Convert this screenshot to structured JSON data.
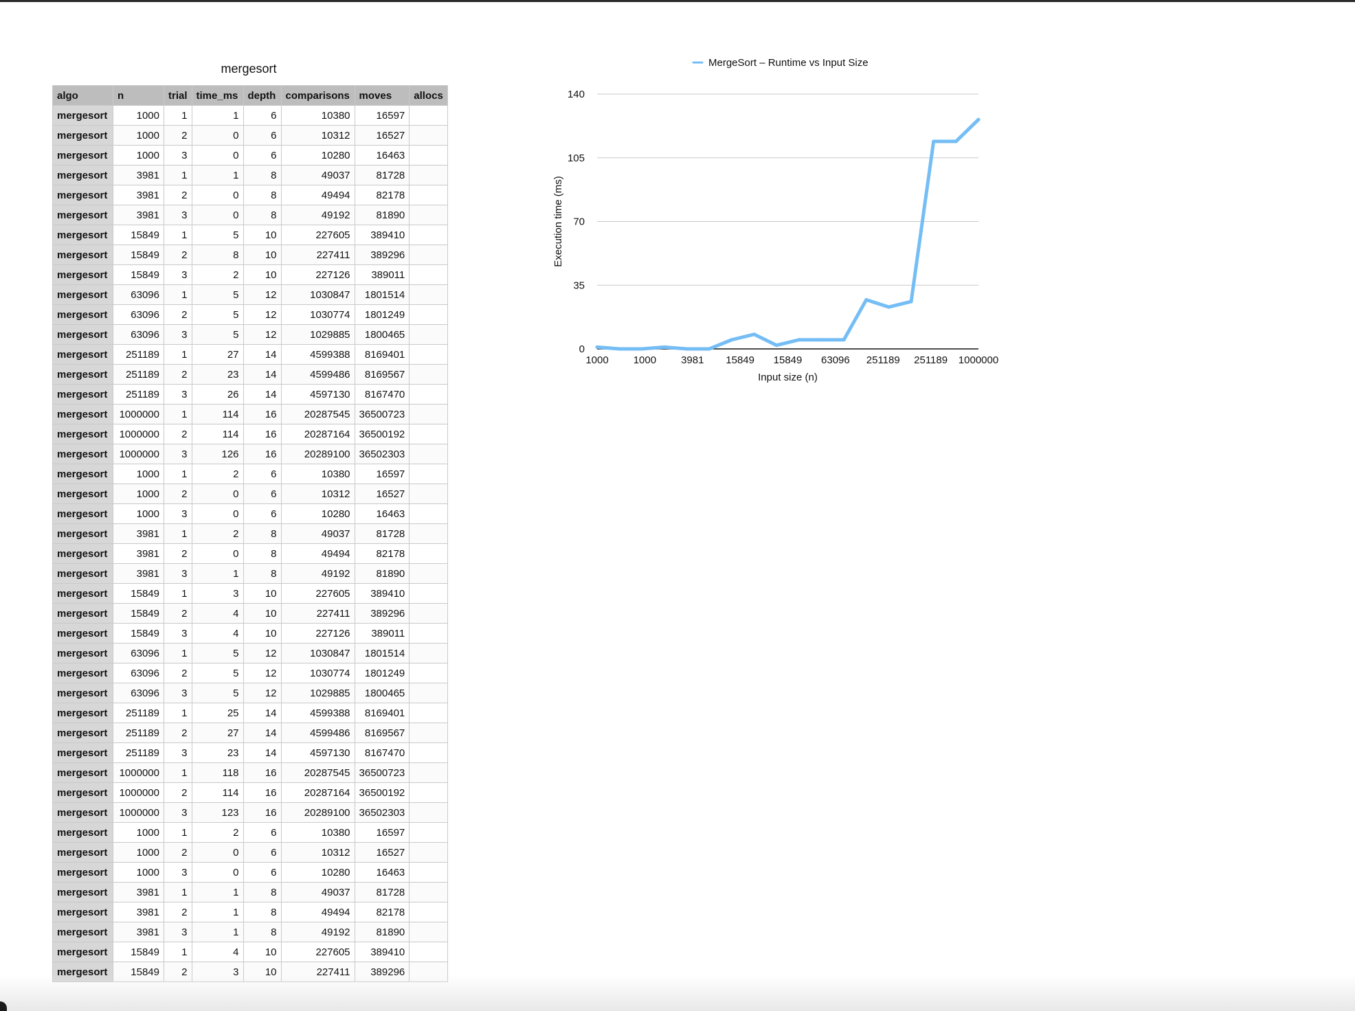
{
  "sheet": {
    "title": "mergesort",
    "columns": [
      "algo",
      "n",
      "trial",
      "time_ms",
      "depth",
      "comparisons",
      "moves",
      "allocs"
    ],
    "rows": [
      [
        "mergesort",
        "1000",
        "1",
        "1",
        "6",
        "10380",
        "16597",
        ""
      ],
      [
        "mergesort",
        "1000",
        "2",
        "0",
        "6",
        "10312",
        "16527",
        ""
      ],
      [
        "mergesort",
        "1000",
        "3",
        "0",
        "6",
        "10280",
        "16463",
        ""
      ],
      [
        "mergesort",
        "3981",
        "1",
        "1",
        "8",
        "49037",
        "81728",
        ""
      ],
      [
        "mergesort",
        "3981",
        "2",
        "0",
        "8",
        "49494",
        "82178",
        ""
      ],
      [
        "mergesort",
        "3981",
        "3",
        "0",
        "8",
        "49192",
        "81890",
        ""
      ],
      [
        "mergesort",
        "15849",
        "1",
        "5",
        "10",
        "227605",
        "389410",
        ""
      ],
      [
        "mergesort",
        "15849",
        "2",
        "8",
        "10",
        "227411",
        "389296",
        ""
      ],
      [
        "mergesort",
        "15849",
        "3",
        "2",
        "10",
        "227126",
        "389011",
        ""
      ],
      [
        "mergesort",
        "63096",
        "1",
        "5",
        "12",
        "1030847",
        "1801514",
        ""
      ],
      [
        "mergesort",
        "63096",
        "2",
        "5",
        "12",
        "1030774",
        "1801249",
        ""
      ],
      [
        "mergesort",
        "63096",
        "3",
        "5",
        "12",
        "1029885",
        "1800465",
        ""
      ],
      [
        "mergesort",
        "251189",
        "1",
        "27",
        "14",
        "4599388",
        "8169401",
        ""
      ],
      [
        "mergesort",
        "251189",
        "2",
        "23",
        "14",
        "4599486",
        "8169567",
        ""
      ],
      [
        "mergesort",
        "251189",
        "3",
        "26",
        "14",
        "4597130",
        "8167470",
        ""
      ],
      [
        "mergesort",
        "1000000",
        "1",
        "114",
        "16",
        "20287545",
        "36500723",
        ""
      ],
      [
        "mergesort",
        "1000000",
        "2",
        "114",
        "16",
        "20287164",
        "36500192",
        ""
      ],
      [
        "mergesort",
        "1000000",
        "3",
        "126",
        "16",
        "20289100",
        "36502303",
        ""
      ],
      [
        "mergesort",
        "1000",
        "1",
        "2",
        "6",
        "10380",
        "16597",
        ""
      ],
      [
        "mergesort",
        "1000",
        "2",
        "0",
        "6",
        "10312",
        "16527",
        ""
      ],
      [
        "mergesort",
        "1000",
        "3",
        "0",
        "6",
        "10280",
        "16463",
        ""
      ],
      [
        "mergesort",
        "3981",
        "1",
        "2",
        "8",
        "49037",
        "81728",
        ""
      ],
      [
        "mergesort",
        "3981",
        "2",
        "0",
        "8",
        "49494",
        "82178",
        ""
      ],
      [
        "mergesort",
        "3981",
        "3",
        "1",
        "8",
        "49192",
        "81890",
        ""
      ],
      [
        "mergesort",
        "15849",
        "1",
        "3",
        "10",
        "227605",
        "389410",
        ""
      ],
      [
        "mergesort",
        "15849",
        "2",
        "4",
        "10",
        "227411",
        "389296",
        ""
      ],
      [
        "mergesort",
        "15849",
        "3",
        "4",
        "10",
        "227126",
        "389011",
        ""
      ],
      [
        "mergesort",
        "63096",
        "1",
        "5",
        "12",
        "1030847",
        "1801514",
        ""
      ],
      [
        "mergesort",
        "63096",
        "2",
        "5",
        "12",
        "1030774",
        "1801249",
        ""
      ],
      [
        "mergesort",
        "63096",
        "3",
        "5",
        "12",
        "1029885",
        "1800465",
        ""
      ],
      [
        "mergesort",
        "251189",
        "1",
        "25",
        "14",
        "4599388",
        "8169401",
        ""
      ],
      [
        "mergesort",
        "251189",
        "2",
        "27",
        "14",
        "4599486",
        "8169567",
        ""
      ],
      [
        "mergesort",
        "251189",
        "3",
        "23",
        "14",
        "4597130",
        "8167470",
        ""
      ],
      [
        "mergesort",
        "1000000",
        "1",
        "118",
        "16",
        "20287545",
        "36500723",
        ""
      ],
      [
        "mergesort",
        "1000000",
        "2",
        "114",
        "16",
        "20287164",
        "36500192",
        ""
      ],
      [
        "mergesort",
        "1000000",
        "3",
        "123",
        "16",
        "20289100",
        "36502303",
        ""
      ],
      [
        "mergesort",
        "1000",
        "1",
        "2",
        "6",
        "10380",
        "16597",
        ""
      ],
      [
        "mergesort",
        "1000",
        "2",
        "0",
        "6",
        "10312",
        "16527",
        ""
      ],
      [
        "mergesort",
        "1000",
        "3",
        "0",
        "6",
        "10280",
        "16463",
        ""
      ],
      [
        "mergesort",
        "3981",
        "1",
        "1",
        "8",
        "49037",
        "81728",
        ""
      ],
      [
        "mergesort",
        "3981",
        "2",
        "1",
        "8",
        "49494",
        "82178",
        ""
      ],
      [
        "mergesort",
        "3981",
        "3",
        "1",
        "8",
        "49192",
        "81890",
        ""
      ],
      [
        "mergesort",
        "15849",
        "1",
        "4",
        "10",
        "227605",
        "389410",
        ""
      ],
      [
        "mergesort",
        "15849",
        "2",
        "3",
        "10",
        "227411",
        "389296",
        ""
      ]
    ]
  },
  "chart_data": {
    "type": "line",
    "legend_position": "top",
    "grid": true,
    "xlabel": "Input size (n)",
    "ylabel": "Execution time (ms)",
    "ylim": [
      0,
      140
    ],
    "yticks": [
      0,
      35,
      70,
      105,
      140
    ],
    "x_tick_labels": [
      "1000",
      "1000",
      "3981",
      "15849",
      "15849",
      "63096",
      "251189",
      "251189",
      "1000000"
    ],
    "categories": [
      "1000",
      "1000",
      "1000",
      "3981",
      "3981",
      "3981",
      "15849",
      "15849",
      "15849",
      "63096",
      "63096",
      "63096",
      "251189",
      "251189",
      "251189",
      "1000000",
      "1000000",
      "1000000"
    ],
    "series": [
      {
        "name": "MergeSort – Runtime vs Input Size",
        "color": "#74bdf5",
        "values": [
          1,
          0,
          0,
          1,
          0,
          0,
          5,
          8,
          2,
          5,
          5,
          5,
          27,
          23,
          26,
          114,
          114,
          126
        ]
      }
    ]
  }
}
